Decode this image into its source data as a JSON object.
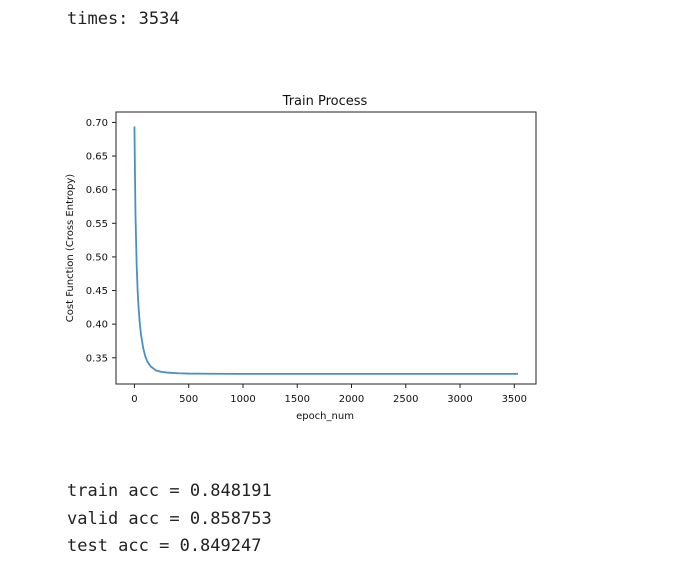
{
  "output": {
    "times_line": "times: 3534",
    "results": [
      "train acc = 0.848191",
      "valid acc = 0.858753",
      "test acc = 0.849247"
    ]
  },
  "chart_data": {
    "type": "line",
    "title": "Train Process",
    "xlabel": "epoch_num",
    "ylabel": "Cost Function (Cross Entropy)",
    "xlim": [
      -170,
      3700
    ],
    "ylim": [
      0.311,
      0.7155
    ],
    "x_ticks": [
      0,
      500,
      1000,
      1500,
      2000,
      2500,
      3000,
      3500
    ],
    "y_ticks": [
      0.35,
      0.4,
      0.45,
      0.5,
      0.55,
      0.6,
      0.65,
      0.7
    ],
    "grid": false,
    "line_color": "#4a8fc4",
    "series": [
      {
        "x": [
          0,
          5,
          10,
          20,
          30,
          40,
          50,
          60,
          80,
          100,
          120,
          150,
          200,
          250,
          300,
          400,
          500,
          700,
          1000,
          1500,
          2000,
          2500,
          3000,
          3534
        ],
        "y": [
          0.694,
          0.62,
          0.56,
          0.49,
          0.447,
          0.42,
          0.4,
          0.385,
          0.365,
          0.352,
          0.344,
          0.337,
          0.331,
          0.329,
          0.328,
          0.327,
          0.3265,
          0.3262,
          0.326,
          0.326,
          0.326,
          0.326,
          0.326,
          0.326
        ]
      }
    ]
  }
}
